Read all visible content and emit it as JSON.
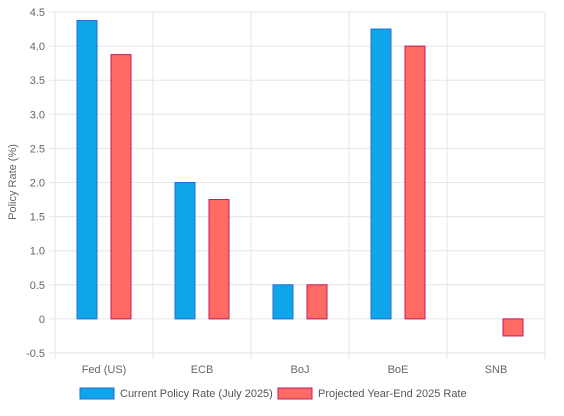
{
  "chart_data": {
    "type": "bar",
    "title": "",
    "xlabel": "",
    "ylabel": "Policy Rate (%)",
    "ylim": [
      -0.5,
      4.5
    ],
    "yticks": [
      4.5,
      4.0,
      3.5,
      3.0,
      2.5,
      2.0,
      1.5,
      1.0,
      0.5,
      0,
      -0.5
    ],
    "ytick_labels": [
      "4.5",
      "4.0",
      "3.5",
      "3.0",
      "2.5",
      "2.0",
      "1.5",
      "1.0",
      "0.5",
      "0",
      "-0.5"
    ],
    "categories": [
      "Fed (US)",
      "ECB",
      "BoJ",
      "BoE",
      "SNB"
    ],
    "series": [
      {
        "name": "Current Policy Rate (July 2025)",
        "values": [
          4.375,
          2.0,
          0.5,
          4.25,
          0.0
        ],
        "fill": "#0ea5e9",
        "stroke": "#1e6fd9"
      },
      {
        "name": "Projected Year-End 2025 Rate",
        "values": [
          3.875,
          1.75,
          0.5,
          4.0,
          -0.25
        ],
        "fill": "#ff6b63",
        "stroke": "#c2185b"
      }
    ],
    "grid": true,
    "legend_position": "bottom"
  }
}
